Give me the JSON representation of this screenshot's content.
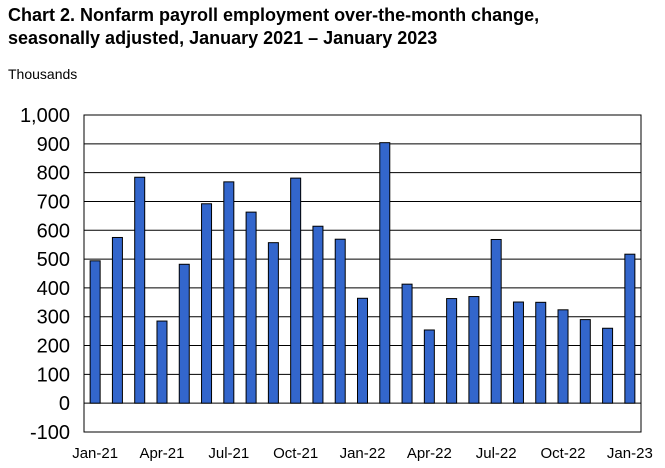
{
  "title_line1": "Chart 2. Nonfarm payroll employment over-the-month change,",
  "title_line2": "seasonally adjusted, January 2021 – January 2023",
  "units_label": "Thousands",
  "colors": {
    "bar": "#3366cc",
    "bar_stroke": "#000000",
    "grid": "#000000"
  },
  "chart_data": {
    "type": "bar",
    "title": "Chart 2. Nonfarm payroll employment over-the-month change, seasonally adjusted, January 2021 – January 2023",
    "ylabel": "Thousands",
    "xlabel": "",
    "ylim": [
      -100,
      1000
    ],
    "yticks": [
      -100,
      0,
      100,
      200,
      300,
      400,
      500,
      600,
      700,
      800,
      900,
      1000
    ],
    "ytick_labels": [
      "-100",
      "0",
      "100",
      "200",
      "300",
      "400",
      "500",
      "600",
      "700",
      "800",
      "900",
      "1,000"
    ],
    "grid": true,
    "categories": [
      "Jan-21",
      "Feb-21",
      "Mar-21",
      "Apr-21",
      "May-21",
      "Jun-21",
      "Jul-21",
      "Aug-21",
      "Sep-21",
      "Oct-21",
      "Nov-21",
      "Dec-21",
      "Jan-22",
      "Feb-22",
      "Mar-22",
      "Apr-22",
      "May-22",
      "Jun-22",
      "Jul-22",
      "Aug-22",
      "Sep-22",
      "Oct-22",
      "Nov-22",
      "Dec-22",
      "Jan-23"
    ],
    "xtick_labels": [
      "Jan-21",
      "",
      "",
      "Apr-21",
      "",
      "",
      "Jul-21",
      "",
      "",
      "Oct-21",
      "",
      "",
      "Jan-22",
      "",
      "",
      "Apr-22",
      "",
      "",
      "Jul-22",
      "",
      "",
      "Oct-22",
      "",
      "",
      "Jan-23"
    ],
    "values": [
      494,
      575,
      784,
      285,
      482,
      692,
      768,
      663,
      557,
      781,
      614,
      569,
      364,
      904,
      413,
      254,
      363,
      370,
      568,
      351,
      350,
      324,
      290,
      260,
      517
    ]
  }
}
